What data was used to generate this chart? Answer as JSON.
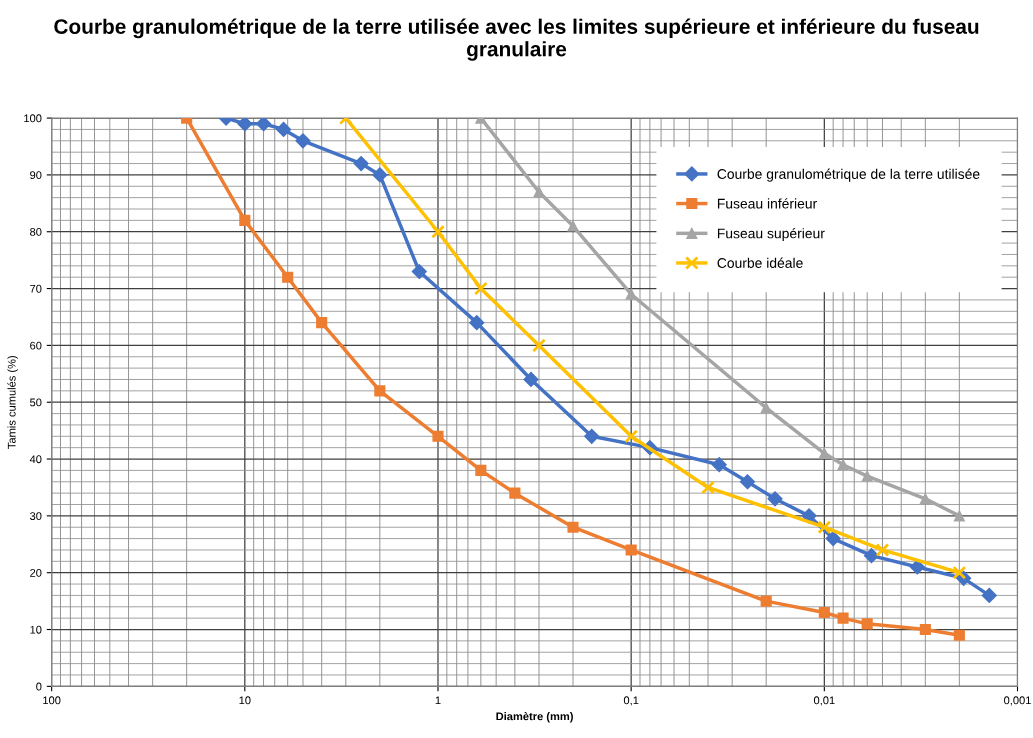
{
  "chart_data": {
    "type": "line",
    "title": "Courbe granulométrique de la terre utilisée avec les limites supérieure et inférieure du fuseau granulaire",
    "xlabel": "Diamètre (mm)",
    "ylabel": "Tamis cumulés (%)",
    "log": "x",
    "grid": true,
    "legend": "top right",
    "line_style": "solid",
    "xlim": [
      100,
      0.001
    ],
    "xticks": [
      100,
      10,
      1,
      {
        "value": 0.1,
        "label": "0,1"
      },
      {
        "value": 0.01,
        "label": "0,01"
      },
      {
        "value": 0.001,
        "label": "0,001"
      }
    ],
    "ylim": [
      0,
      100
    ],
    "yticks": [
      0,
      10,
      20,
      30,
      40,
      50,
      60,
      70,
      80,
      90,
      100
    ],
    "series": [
      {
        "name": "Courbe granulométrique de la terre utilisée",
        "color": "#4472c4",
        "marker": "diamond",
        "x": [
          12.5,
          10,
          8,
          6.3,
          5,
          2.5,
          2,
          1.25,
          0.63,
          0.33,
          0.16,
          0.08,
          0.035,
          0.025,
          0.018,
          0.012,
          0.009,
          0.0057,
          0.0033,
          0.0019,
          0.0014
        ],
        "values": [
          100,
          99,
          99,
          98,
          96,
          92,
          90,
          73,
          64,
          54,
          44,
          42,
          39,
          36,
          33,
          30,
          26,
          23,
          21,
          19,
          16
        ]
      },
      {
        "name": "Fuseau inférieur",
        "color": "#ed7d31",
        "marker": "square",
        "x": [
          20,
          10,
          6,
          4,
          2,
          1,
          0.6,
          0.4,
          0.2,
          0.1,
          0.02,
          0.01,
          0.008,
          0.006,
          0.003,
          0.002
        ],
        "values": [
          100,
          82,
          72,
          64,
          52,
          44,
          38,
          34,
          28,
          24,
          15,
          13,
          12,
          11,
          10,
          9
        ]
      },
      {
        "name": "Fuseau supérieur",
        "color": "#a5a5a5",
        "marker": "triangle",
        "x": [
          0.6,
          0.3,
          0.2,
          0.1,
          0.02,
          0.01,
          0.008,
          0.006,
          0.003,
          0.002
        ],
        "values": [
          100,
          87,
          81,
          69,
          49,
          41,
          39,
          37,
          33,
          30
        ]
      },
      {
        "name": "Courbe idéale",
        "color": "#ffc000",
        "marker": "cross",
        "x": [
          3,
          1,
          0.6,
          0.3,
          0.1,
          0.04,
          0.01,
          0.005,
          0.002
        ],
        "values": [
          100,
          80,
          70,
          60,
          44,
          35,
          28,
          24,
          20
        ]
      }
    ]
  }
}
